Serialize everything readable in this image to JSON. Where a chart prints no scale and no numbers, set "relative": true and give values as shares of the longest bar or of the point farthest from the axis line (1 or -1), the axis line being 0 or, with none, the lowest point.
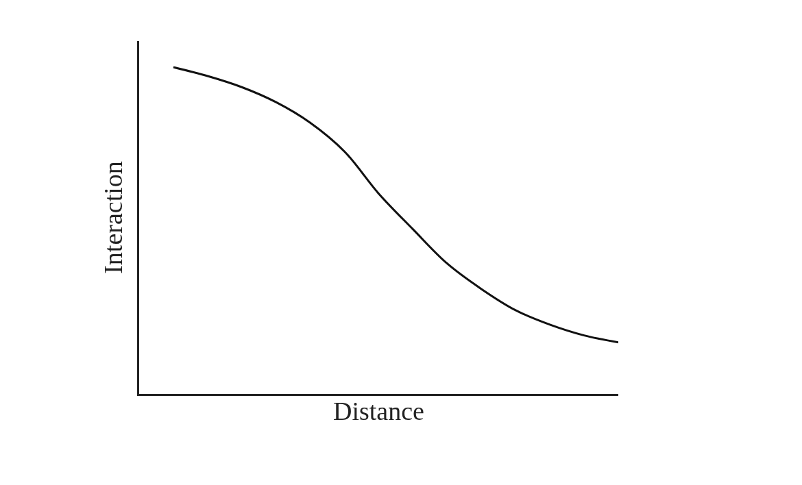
{
  "chart_data": {
    "type": "line",
    "xlabel": "Distance",
    "ylabel": "Interaction",
    "relative": true,
    "categories": [
      null,
      null,
      null,
      null,
      null,
      null,
      null,
      null,
      null,
      null,
      null,
      null,
      null,
      null
    ],
    "series": [
      {
        "color": "#111111",
        "values": [
          1.0,
          0.973,
          0.939,
          0.893,
          0.83,
          0.742,
          0.613,
          0.504,
          0.399,
          0.321,
          0.256,
          0.212,
          0.179,
          0.158
        ]
      }
    ],
    "marker": "none",
    "line_style": "solid"
  }
}
